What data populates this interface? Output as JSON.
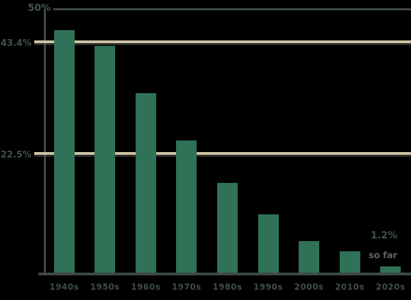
{
  "colors": {
    "background": "#000000",
    "bar": "#2F7257",
    "reference_line": "#CEC2A5",
    "axis_line": "#3E4A44",
    "text_dark": "#41504A",
    "text_muted": "#5C6660"
  },
  "y_axis": {
    "top_label": "50%",
    "reference_lines": [
      {
        "label": "43.4%",
        "value": 43.4
      },
      {
        "label": "22.5%",
        "value": 22.5
      }
    ]
  },
  "annotation": {
    "value": "1.2%",
    "note": "so far"
  },
  "chart_data": {
    "type": "bar",
    "title": "",
    "xlabel": "",
    "ylabel": "",
    "categories": [
      "1940s",
      "1950s",
      "1960s",
      "1970s",
      "1980s",
      "1990s",
      "2000s",
      "2010s",
      "2020s"
    ],
    "values": [
      46,
      43,
      34,
      25,
      17,
      11,
      6,
      4,
      1.2
    ],
    "ylim": [
      0,
      50
    ],
    "grid": "top border line at 50; tan reference lines at 43.4 and 22.5",
    "legend_position": "none",
    "bar_color": "#2F7257",
    "background": "#000000"
  }
}
